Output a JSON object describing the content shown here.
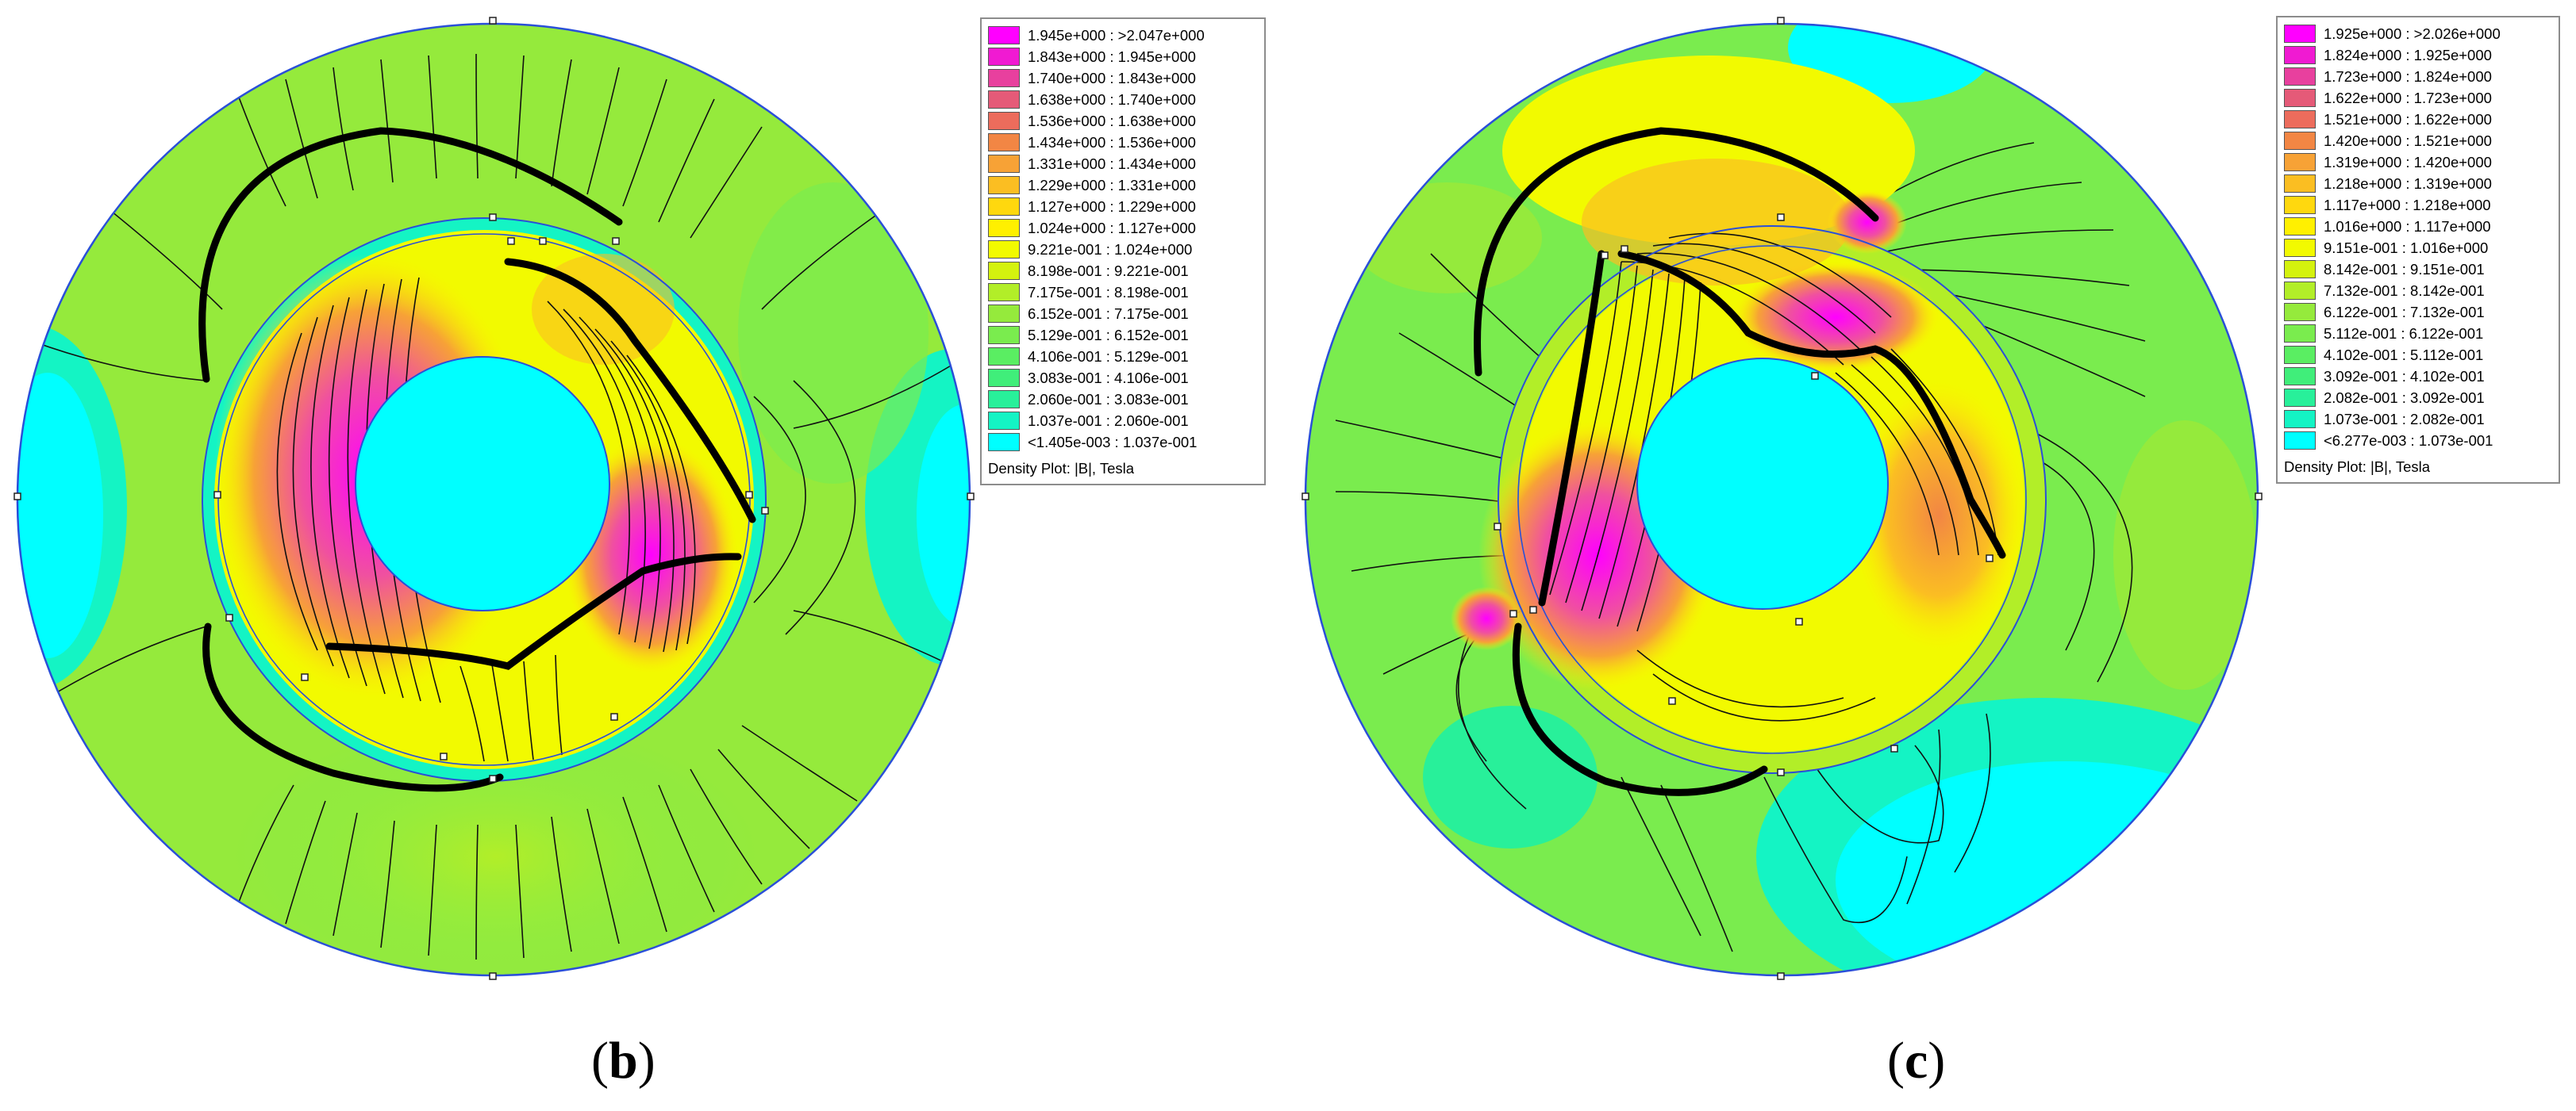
{
  "panels": [
    {
      "id": "b",
      "caption_open": "(",
      "caption_letter": "b",
      "caption_close": ")",
      "legend_title": "Density Plot: |B|, Tesla",
      "legend": [
        {
          "label": "1.945e+000 : >2.047e+000",
          "color": "#ff00ff"
        },
        {
          "label": "1.843e+000 : 1.945e+000",
          "color": "#f01ad2"
        },
        {
          "label": "1.740e+000 : 1.843e+000",
          "color": "#e8409e"
        },
        {
          "label": "1.638e+000 : 1.740e+000",
          "color": "#e55a78"
        },
        {
          "label": "1.536e+000 : 1.638e+000",
          "color": "#ec6c5c"
        },
        {
          "label": "1.434e+000 : 1.536e+000",
          "color": "#f28644"
        },
        {
          "label": "1.331e+000 : 1.434e+000",
          "color": "#f7a236"
        },
        {
          "label": "1.229e+000 : 1.331e+000",
          "color": "#fbbe22"
        },
        {
          "label": "1.127e+000 : 1.229e+000",
          "color": "#ffd80e"
        },
        {
          "label": "1.024e+000 : 1.127e+000",
          "color": "#fff000"
        },
        {
          "label": "9.221e-001 : 1.024e+000",
          "color": "#f2fa00"
        },
        {
          "label": "8.198e-001 : 9.221e-001",
          "color": "#d4f20e"
        },
        {
          "label": "7.175e-001 : 8.198e-001",
          "color": "#b2ee28"
        },
        {
          "label": "6.152e-001 : 7.175e-001",
          "color": "#95ea3c"
        },
        {
          "label": "5.129e-001 : 6.152e-001",
          "color": "#7aec4e"
        },
        {
          "label": "4.106e-001 : 5.129e-001",
          "color": "#5aee62"
        },
        {
          "label": "3.083e-001 : 4.106e-001",
          "color": "#40ee7a"
        },
        {
          "label": "2.060e-001 : 3.083e-001",
          "color": "#28f09a"
        },
        {
          "label": "1.037e-001 : 2.060e-001",
          "color": "#14f4c4"
        },
        {
          "label": "<1.405e-003 : 1.037e-001",
          "color": "#00ffff"
        }
      ]
    },
    {
      "id": "c",
      "caption_open": "(",
      "caption_letter": "c",
      "caption_close": ")",
      "legend_title": "Density Plot: |B|, Tesla",
      "legend": [
        {
          "label": "1.925e+000 : >2.026e+000",
          "color": "#ff00ff"
        },
        {
          "label": "1.824e+000 : 1.925e+000",
          "color": "#f01ad2"
        },
        {
          "label": "1.723e+000 : 1.824e+000",
          "color": "#e8409e"
        },
        {
          "label": "1.622e+000 : 1.723e+000",
          "color": "#e55a78"
        },
        {
          "label": "1.521e+000 : 1.622e+000",
          "color": "#ec6c5c"
        },
        {
          "label": "1.420e+000 : 1.521e+000",
          "color": "#f28644"
        },
        {
          "label": "1.319e+000 : 1.420e+000",
          "color": "#f7a236"
        },
        {
          "label": "1.218e+000 : 1.319e+000",
          "color": "#fbbe22"
        },
        {
          "label": "1.117e+000 : 1.218e+000",
          "color": "#ffd80e"
        },
        {
          "label": "1.016e+000 : 1.117e+000",
          "color": "#fff000"
        },
        {
          "label": "9.151e-001 : 1.016e+000",
          "color": "#f2fa00"
        },
        {
          "label": "8.142e-001 : 9.151e-001",
          "color": "#d4f20e"
        },
        {
          "label": "7.132e-001 : 8.142e-001",
          "color": "#b2ee28"
        },
        {
          "label": "6.122e-001 : 7.132e-001",
          "color": "#95ea3c"
        },
        {
          "label": "5.112e-001 : 6.122e-001",
          "color": "#7aec4e"
        },
        {
          "label": "4.102e-001 : 5.112e-001",
          "color": "#5aee62"
        },
        {
          "label": "3.092e-001 : 4.102e-001",
          "color": "#40ee7a"
        },
        {
          "label": "2.082e-001 : 3.092e-001",
          "color": "#28f09a"
        },
        {
          "label": "1.073e-001 : 2.082e-001",
          "color": "#14f4c4"
        },
        {
          "label": "<6.277e-003 : 1.073e-001",
          "color": "#00ffff"
        }
      ]
    }
  ]
}
